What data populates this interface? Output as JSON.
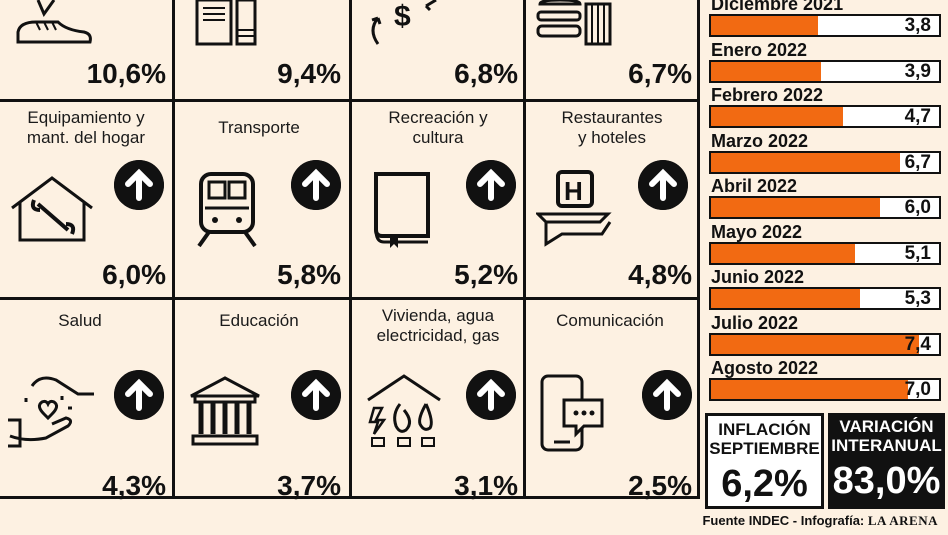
{
  "categories": [
    {
      "id": "indumentaria",
      "title": "",
      "value": "10,6%",
      "icon": "shoe-icon"
    },
    {
      "id": "bebidas",
      "title": "",
      "value": "9,4%",
      "icon": "bottles-icon"
    },
    {
      "id": "bienes",
      "title": "",
      "value": "6,8%",
      "icon": "dollar-arrows-icon"
    },
    {
      "id": "alimentos",
      "title": "",
      "value": "6,7%",
      "icon": "burger-icon"
    },
    {
      "id": "equipamiento",
      "title": "Equipamiento y\nmant. del hogar",
      "value": "6,0%",
      "icon": "house-wrench-icon"
    },
    {
      "id": "transporte",
      "title": "Transporte",
      "value": "5,8%",
      "icon": "train-icon"
    },
    {
      "id": "recreacion",
      "title": "Recreación y\ncultura",
      "value": "5,2%",
      "icon": "book-icon"
    },
    {
      "id": "restaurantes",
      "title": "Restaurantes\ny hoteles",
      "value": "4,8%",
      "icon": "hotel-icon"
    },
    {
      "id": "salud",
      "title": "Salud",
      "value": "4,3%",
      "icon": "hands-heart-icon"
    },
    {
      "id": "educacion",
      "title": "Educación",
      "value": "3,7%",
      "icon": "institution-icon"
    },
    {
      "id": "vivienda",
      "title": "Vivienda, agua\nelectricidad, gas",
      "value": "3,1%",
      "icon": "utilities-icon"
    },
    {
      "id": "comunicacion",
      "title": "Comunicación",
      "value": "2,5%",
      "icon": "phone-chat-icon"
    }
  ],
  "chart_data": {
    "type": "bar",
    "orientation": "horizontal",
    "categories": [
      "Diciembre 2021",
      "Enero 2022",
      "Febrero 2022",
      "Marzo 2022",
      "Abril 2022",
      "Mayo 2022",
      "Junio 2022",
      "Julio 2022",
      "Agosto 2022"
    ],
    "values": [
      3.8,
      3.9,
      4.7,
      6.7,
      6.0,
      5.1,
      5.3,
      7.4,
      7.0
    ],
    "value_labels": [
      "3,8",
      "3,9",
      "4,7",
      "6,7",
      "6,0",
      "5,1",
      "5,3",
      "7,4",
      "7,0"
    ],
    "xlim": [
      0,
      8.1
    ]
  },
  "summary": {
    "inflation_label": "INFLACIÓN\nSEPTIEMBRE",
    "inflation_value": "6,2%",
    "variation_label": "VARIACIÓN\nINTERANUAL",
    "variation_value": "83,0%"
  },
  "footer": {
    "source": "Fuente INDEC - Infografía:",
    "brand": "La Arena"
  },
  "colors": {
    "bar": "#f26a12",
    "background": "#fdf1e2",
    "ink": "#111111"
  }
}
